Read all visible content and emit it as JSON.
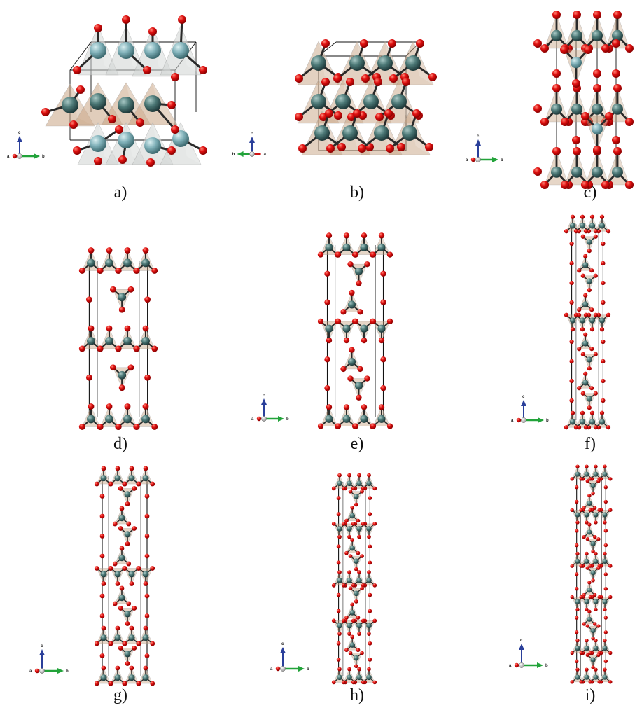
{
  "panels": [
    {
      "id": "a",
      "caption": "a)",
      "axes": {
        "up": "c",
        "right": "b",
        "origin": "a"
      }
    },
    {
      "id": "b",
      "caption": "b)",
      "axes": {
        "up": "c",
        "right": "a",
        "left": "b"
      }
    },
    {
      "id": "c",
      "caption": "c)",
      "axes": {
        "up": "c",
        "right": "b",
        "origin": "a"
      }
    },
    {
      "id": "d",
      "caption": "d)",
      "axes": null
    },
    {
      "id": "e",
      "caption": "e)",
      "axes": {
        "up": "c",
        "right": "b",
        "origin": "a"
      }
    },
    {
      "id": "f",
      "caption": "f)",
      "axes": {
        "up": "c",
        "right": "b",
        "origin": "a"
      }
    },
    {
      "id": "g",
      "caption": "g)",
      "axes": {
        "up": "c",
        "right": "b",
        "origin": "a"
      }
    },
    {
      "id": "h",
      "caption": "h)",
      "axes": {
        "up": "c",
        "right": "b",
        "origin": "a"
      }
    },
    {
      "id": "i",
      "caption": "i)",
      "axes": {
        "up": "c",
        "right": "b",
        "origin": "a"
      }
    }
  ],
  "colors": {
    "oxygen": "#e01010",
    "cation_light": "#7fb0b8",
    "cation_dark": "#3f6b6e",
    "tetrahedron_grey": "#cfd3d2",
    "tetrahedron_tan": "#c8a483",
    "axis_c": "#2a3f9a",
    "axis_b": "#22a33a",
    "axis_a": "#d01010",
    "cell_line": "#111111"
  }
}
